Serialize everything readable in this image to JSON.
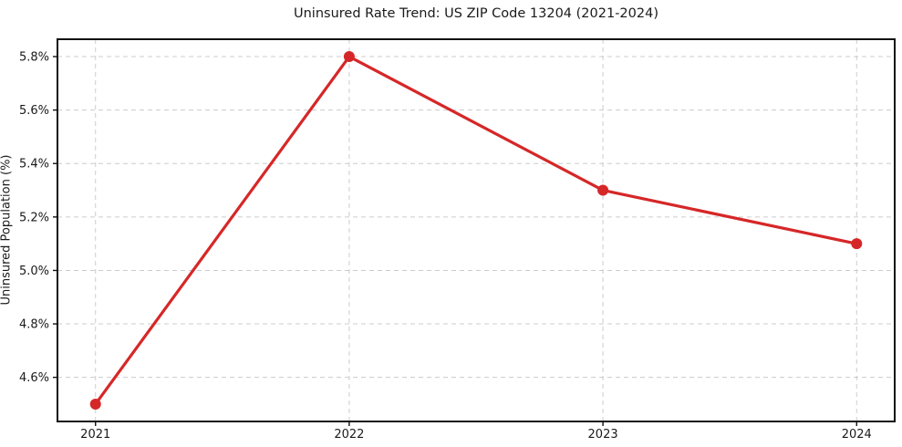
{
  "chart_data": {
    "type": "line",
    "title": "Uninsured Rate Trend: US ZIP Code 13204 (2021-2024)",
    "xlabel": "",
    "ylabel": "Uninsured Population (%)",
    "x": [
      2021,
      2022,
      2023,
      2024
    ],
    "values": [
      4.5,
      5.8,
      5.3,
      5.1
    ],
    "x_ticks": [
      2021,
      2022,
      2023,
      2024
    ],
    "x_tick_labels": [
      "2021",
      "2022",
      "2023",
      "2024"
    ],
    "y_ticks": [
      4.6,
      4.8,
      5.0,
      5.2,
      5.4,
      5.6,
      5.8
    ],
    "y_tick_labels": [
      "4.6%",
      "4.8%",
      "5.0%",
      "5.2%",
      "5.4%",
      "5.6%",
      "5.8%"
    ],
    "xlim": [
      2020.85,
      2024.15
    ],
    "ylim": [
      4.435,
      5.865
    ],
    "grid": true,
    "legend": null,
    "line_color": "#d62728",
    "marker": "circle",
    "marker_radius": 6,
    "grid_color": "#cccccc",
    "spine_color": "#111111"
  }
}
